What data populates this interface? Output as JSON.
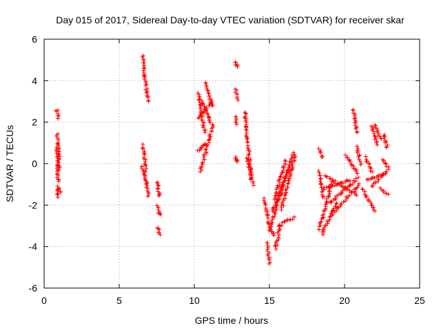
{
  "chart_data": {
    "type": "scatter",
    "title": "Day 015 of 2017, Sidereal Day-to-day VTEC variation (SDTVAR) for receiver skar",
    "xlabel": "GPS time / hours",
    "ylabel": "SDTVAR / TECUs",
    "xlim": [
      0,
      25
    ],
    "ylim": [
      -6,
      6
    ],
    "xticks": [
      0,
      5,
      10,
      15,
      20,
      25
    ],
    "yticks": [
      -6,
      -4,
      -2,
      0,
      2,
      4,
      6
    ],
    "grid": true,
    "marker": "+",
    "colors": {
      "series": "#ff0000",
      "grid": "#a0a0a0",
      "axis": "#000000"
    },
    "series": [
      {
        "name": "SDTVAR",
        "segments": [
          {
            "x": [
              0.85,
              0.95
            ],
            "y": [
              2.6,
              2.2
            ]
          },
          {
            "x": [
              0.85,
              1.0
            ],
            "y": [
              1.4,
              0.2
            ]
          },
          {
            "x": [
              0.85,
              1.0
            ],
            "y": [
              0.8,
              -0.3
            ]
          },
          {
            "x": [
              0.85,
              0.95
            ],
            "y": [
              0.0,
              -0.9
            ]
          },
          {
            "x": [
              0.85,
              0.95
            ],
            "y": [
              -1.2,
              -1.6
            ]
          },
          {
            "x": [
              0.95,
              1.05
            ],
            "y": [
              -1.1,
              -1.4
            ]
          },
          {
            "x": [
              6.55,
              6.9
            ],
            "y": [
              5.2,
              3.0
            ]
          },
          {
            "x": [
              6.55,
              6.8
            ],
            "y": [
              0.9,
              -0.2
            ]
          },
          {
            "x": [
              6.5,
              6.7
            ],
            "y": [
              -0.1,
              -0.6
            ]
          },
          {
            "x": [
              6.7,
              6.95
            ],
            "y": [
              -0.4,
              -1.6
            ]
          },
          {
            "x": [
              7.55,
              7.7
            ],
            "y": [
              -0.9,
              -1.6
            ]
          },
          {
            "x": [
              7.55,
              7.7
            ],
            "y": [
              -2.0,
              -2.5
            ]
          },
          {
            "x": [
              7.55,
              7.7
            ],
            "y": [
              -3.1,
              -3.4
            ]
          },
          {
            "x": [
              10.25,
              10.7
            ],
            "y": [
              3.4,
              1.5
            ]
          },
          {
            "x": [
              10.3,
              11.2
            ],
            "y": [
              2.2,
              3.0
            ]
          },
          {
            "x": [
              10.4,
              11.15
            ],
            "y": [
              3.1,
              1.9
            ]
          },
          {
            "x": [
              10.8,
              11.2
            ],
            "y": [
              3.9,
              2.8
            ]
          },
          {
            "x": [
              10.2,
              10.8
            ],
            "y": [
              0.6,
              1.0
            ]
          },
          {
            "x": [
              10.4,
              11.2
            ],
            "y": [
              -0.4,
              1.8
            ]
          },
          {
            "x": [
              12.75,
              12.85
            ],
            "y": [
              4.9,
              4.7
            ]
          },
          {
            "x": [
              12.75,
              12.85
            ],
            "y": [
              3.6,
              3.1
            ]
          },
          {
            "x": [
              12.7,
              12.85
            ],
            "y": [
              2.3,
              1.9
            ]
          },
          {
            "x": [
              12.75,
              12.85
            ],
            "y": [
              0.3,
              0.1
            ]
          },
          {
            "x": [
              13.35,
              13.8
            ],
            "y": [
              2.5,
              -0.7
            ]
          },
          {
            "x": [
              13.5,
              13.9
            ],
            "y": [
              0.3,
              -1.0
            ]
          },
          {
            "x": [
              14.65,
              14.9
            ],
            "y": [
              -1.7,
              -2.6
            ]
          },
          {
            "x": [
              14.85,
              15.0
            ],
            "y": [
              -3.8,
              -4.8
            ]
          },
          {
            "x": [
              14.9,
              15.3
            ],
            "y": [
              -2.8,
              -3.5
            ]
          },
          {
            "x": [
              15.0,
              16.6
            ],
            "y": [
              -3.2,
              0.5
            ]
          },
          {
            "x": [
              15.2,
              16.3
            ],
            "y": [
              -2.3,
              -0.2
            ]
          },
          {
            "x": [
              15.3,
              16.1
            ],
            "y": [
              -1.7,
              0.2
            ]
          },
          {
            "x": [
              15.4,
              15.7
            ],
            "y": [
              -4.1,
              -3.0
            ]
          },
          {
            "x": [
              15.6,
              16.6
            ],
            "y": [
              -3.0,
              -2.6
            ]
          },
          {
            "x": [
              15.8,
              16.7
            ],
            "y": [
              -2.2,
              0.4
            ]
          },
          {
            "x": [
              18.3,
              18.5
            ],
            "y": [
              0.7,
              0.3
            ]
          },
          {
            "x": [
              18.3,
              18.6
            ],
            "y": [
              -0.4,
              -1.6
            ]
          },
          {
            "x": [
              18.3,
              19.2
            ],
            "y": [
              -3.2,
              -0.8
            ]
          },
          {
            "x": [
              18.5,
              19.5
            ],
            "y": [
              -3.4,
              -1.9
            ]
          },
          {
            "x": [
              18.6,
              20.4
            ],
            "y": [
              -1.2,
              -0.8
            ]
          },
          {
            "x": [
              18.7,
              20.8
            ],
            "y": [
              -0.6,
              -1.5
            ]
          },
          {
            "x": [
              19.0,
              20.9
            ],
            "y": [
              -1.9,
              -0.7
            ]
          },
          {
            "x": [
              19.2,
              21.0
            ],
            "y": [
              -2.4,
              -1.0
            ]
          },
          {
            "x": [
              20.1,
              20.9
            ],
            "y": [
              0.4,
              -0.5
            ]
          },
          {
            "x": [
              20.6,
              20.8
            ],
            "y": [
              2.6,
              1.5
            ]
          },
          {
            "x": [
              20.8,
              21.1
            ],
            "y": [
              0.8,
              0.0
            ]
          },
          {
            "x": [
              21.2,
              22.0
            ],
            "y": [
              -1.2,
              -2.3
            ]
          },
          {
            "x": [
              21.5,
              22.6
            ],
            "y": [
              -0.8,
              -0.5
            ]
          },
          {
            "x": [
              21.4,
              21.8
            ],
            "y": [
              0.3,
              -0.4
            ]
          },
          {
            "x": [
              21.8,
              22.9
            ],
            "y": [
              -1.1,
              -0.3
            ]
          },
          {
            "x": [
              21.8,
              22.2
            ],
            "y": [
              1.8,
              0.9
            ]
          },
          {
            "x": [
              22.0,
              22.4
            ],
            "y": [
              1.9,
              1.2
            ]
          },
          {
            "x": [
              22.6,
              22.85
            ],
            "y": [
              1.4,
              0.8
            ]
          },
          {
            "x": [
              22.55,
              22.9
            ],
            "y": [
              0.2,
              -0.2
            ]
          },
          {
            "x": [
              22.4,
              22.9
            ],
            "y": [
              -1.2,
              -1.5
            ]
          }
        ]
      }
    ]
  }
}
